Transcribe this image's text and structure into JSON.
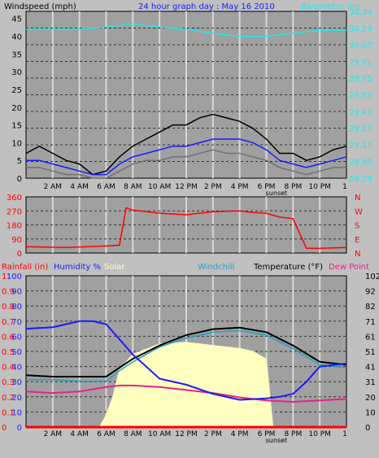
{
  "header": {
    "wind_title": "Windspeed (mph)",
    "graph_title": "24 hour graph day : May 16 2010",
    "baro_title": "Barometer (in)"
  },
  "bottom_header": {
    "rainfall": "Rainfall (in)",
    "humidity": "Humidity %",
    "solar": "Solar",
    "windchill": "Windchill",
    "temperature": "Temperature (°F)",
    "dewpoint": "Dew Point"
  },
  "colors": {
    "wind_gust": "#000000",
    "wind_avg": "#1a1aff",
    "wind_low": "#707070",
    "barometer": "#22e8e8",
    "direction": "#ff0000",
    "humidity": "#1a1aff",
    "solar": "#ffffc0",
    "temperature": "#000000",
    "windchill": "#22a0c8",
    "dewpoint": "#e8208c",
    "rainfall": "#ff0000",
    "plot_bg": "#a0a0a0"
  },
  "chart_data": [
    {
      "type": "line",
      "name": "wind-barometer",
      "x_labels": [
        "2 AM",
        "4 AM",
        "6 AM",
        "8 AM",
        "10 AM",
        "12 PM",
        "2 PM",
        "4 PM",
        "6 PM",
        "8 PM",
        "10 PM",
        "1"
      ],
      "sunset_label": "sunset",
      "sunset_hour": 19,
      "y_left_ticks": [
        0,
        5,
        10,
        15,
        20,
        25,
        30,
        35,
        40,
        45
      ],
      "y_left_range": [
        0,
        47
      ],
      "y_right_ticks": [
        "28.79",
        "28.95",
        "29.11",
        "29.27",
        "29.43",
        "29.59",
        "29.75",
        "29.91",
        "30.07",
        "30.23",
        "30.39"
      ],
      "y_right_range": [
        28.79,
        30.39
      ],
      "series": [
        {
          "key": "gust",
          "points": [
            [
              0,
              7
            ],
            [
              1,
              9
            ],
            [
              2,
              7
            ],
            [
              3,
              5
            ],
            [
              4,
              4
            ],
            [
              5,
              1
            ],
            [
              6,
              2
            ],
            [
              7,
              6
            ],
            [
              8,
              9
            ],
            [
              9,
              11
            ],
            [
              10,
              13
            ],
            [
              11,
              15
            ],
            [
              12,
              15
            ],
            [
              13,
              17
            ],
            [
              14,
              18
            ],
            [
              15,
              17
            ],
            [
              16,
              16
            ],
            [
              17,
              14
            ],
            [
              18,
              11
            ],
            [
              19,
              7
            ],
            [
              20,
              7
            ],
            [
              21,
              5
            ],
            [
              22,
              6
            ],
            [
              23,
              8
            ],
            [
              24,
              9
            ]
          ]
        },
        {
          "key": "avg",
          "points": [
            [
              0,
              5
            ],
            [
              1,
              5
            ],
            [
              2,
              4
            ],
            [
              3,
              3
            ],
            [
              4,
              2
            ],
            [
              5,
              1
            ],
            [
              6,
              1
            ],
            [
              7,
              4
            ],
            [
              8,
              6
            ],
            [
              9,
              7
            ],
            [
              10,
              8
            ],
            [
              11,
              9
            ],
            [
              12,
              9
            ],
            [
              13,
              10
            ],
            [
              14,
              11
            ],
            [
              15,
              11
            ],
            [
              16,
              11
            ],
            [
              17,
              10
            ],
            [
              18,
              8
            ],
            [
              19,
              5
            ],
            [
              20,
              4
            ],
            [
              21,
              3
            ],
            [
              22,
              4
            ],
            [
              23,
              5
            ],
            [
              24,
              6
            ]
          ]
        },
        {
          "key": "low",
          "points": [
            [
              0,
              3
            ],
            [
              1,
              3
            ],
            [
              2,
              2
            ],
            [
              3,
              1
            ],
            [
              4,
              1
            ],
            [
              5,
              0
            ],
            [
              6,
              0
            ],
            [
              7,
              2
            ],
            [
              8,
              4
            ],
            [
              9,
              5
            ],
            [
              10,
              5
            ],
            [
              11,
              6
            ],
            [
              12,
              6
            ],
            [
              13,
              7
            ],
            [
              14,
              8
            ],
            [
              15,
              7
            ],
            [
              16,
              7
            ],
            [
              17,
              6
            ],
            [
              18,
              5
            ],
            [
              19,
              3
            ],
            [
              20,
              2
            ],
            [
              21,
              1
            ],
            [
              22,
              2
            ],
            [
              23,
              3
            ],
            [
              24,
              3
            ]
          ]
        },
        {
          "key": "barometer",
          "points": [
            [
              0,
              30.22
            ],
            [
              2,
              30.22
            ],
            [
              4,
              30.22
            ],
            [
              6,
              30.24
            ],
            [
              8,
              30.27
            ],
            [
              10,
              30.24
            ],
            [
              12,
              30.22
            ],
            [
              14,
              30.18
            ],
            [
              16,
              30.15
            ],
            [
              18,
              30.15
            ],
            [
              20,
              30.18
            ],
            [
              22,
              30.21
            ],
            [
              24,
              30.21
            ]
          ]
        }
      ]
    },
    {
      "type": "scatter",
      "name": "wind-direction",
      "y_ticks": [
        0,
        90,
        180,
        270,
        360
      ],
      "y_right_labels": [
        "N",
        "W",
        "S",
        "E",
        "N"
      ],
      "y_range": [
        0,
        360
      ],
      "series": [
        {
          "key": "direction",
          "points": [
            [
              0,
              40
            ],
            [
              3,
              35
            ],
            [
              6,
              45
            ],
            [
              7,
              50
            ],
            [
              7.5,
              290
            ],
            [
              8,
              275
            ],
            [
              10,
              255
            ],
            [
              12,
              245
            ],
            [
              14,
              265
            ],
            [
              16,
              270
            ],
            [
              17,
              260
            ],
            [
              18,
              255
            ],
            [
              19,
              230
            ],
            [
              20,
              220
            ],
            [
              21,
              30
            ],
            [
              22,
              30
            ],
            [
              24,
              35
            ]
          ]
        }
      ]
    },
    {
      "type": "line",
      "name": "temperature-humidity",
      "y_left_ticks": [
        0,
        10,
        20,
        30,
        40,
        50,
        60,
        70,
        80,
        90,
        100
      ],
      "y_left_range": [
        0,
        100
      ],
      "y_rain_ticks": [
        "0",
        "0.1",
        "0.2",
        "0.3",
        "0.4",
        "0.5",
        "0.6",
        "0.7",
        "0.8",
        "0.9",
        "1"
      ],
      "y_right_ticks": [
        0,
        10,
        20,
        31,
        41,
        51,
        61,
        71,
        82,
        92,
        102
      ],
      "y_right_range": [
        0,
        102
      ],
      "series": [
        {
          "key": "humidity",
          "points": [
            [
              0,
              65
            ],
            [
              2,
              66
            ],
            [
              4,
              70
            ],
            [
              5,
              70
            ],
            [
              6,
              68
            ],
            [
              7,
              58
            ],
            [
              8,
              48
            ],
            [
              9,
              40
            ],
            [
              10,
              32
            ],
            [
              12,
              28
            ],
            [
              14,
              22
            ],
            [
              16,
              18
            ],
            [
              18,
              19
            ],
            [
              19,
              20
            ],
            [
              20,
              22
            ],
            [
              21,
              30
            ],
            [
              22,
              40
            ],
            [
              24,
              42
            ]
          ]
        },
        {
          "key": "solar",
          "points": [
            [
              5.5,
              0
            ],
            [
              6,
              8
            ],
            [
              6.5,
              20
            ],
            [
              7,
              38
            ],
            [
              8,
              48
            ],
            [
              10,
              55
            ],
            [
              12,
              56
            ],
            [
              14,
              54
            ],
            [
              16,
              52
            ],
            [
              17,
              50
            ],
            [
              18,
              45
            ],
            [
              18.5,
              0
            ]
          ]
        },
        {
          "key": "temperature",
          "points": [
            [
              0,
              35
            ],
            [
              2,
              34
            ],
            [
              4,
              34
            ],
            [
              6,
              34
            ],
            [
              7,
              40
            ],
            [
              8,
              46
            ],
            [
              10,
              55
            ],
            [
              12,
              62
            ],
            [
              14,
              66
            ],
            [
              16,
              67
            ],
            [
              18,
              64
            ],
            [
              20,
              55
            ],
            [
              22,
              44
            ],
            [
              24,
              42
            ]
          ]
        },
        {
          "key": "windchill",
          "points": [
            [
              0,
              32
            ],
            [
              2,
              32
            ],
            [
              4,
              31
            ],
            [
              6,
              31
            ],
            [
              7,
              38
            ],
            [
              8,
              44
            ],
            [
              10,
              54
            ],
            [
              12,
              60
            ],
            [
              14,
              64
            ],
            [
              16,
              65
            ],
            [
              18,
              62
            ],
            [
              20,
              53
            ],
            [
              22,
              42
            ],
            [
              24,
              40
            ]
          ]
        },
        {
          "key": "dewpoint",
          "points": [
            [
              0,
              24
            ],
            [
              2,
              23
            ],
            [
              4,
              24
            ],
            [
              6,
              27
            ],
            [
              7,
              28
            ],
            [
              8,
              28
            ],
            [
              10,
              27
            ],
            [
              12,
              25
            ],
            [
              14,
              23
            ],
            [
              16,
              20
            ],
            [
              18,
              18
            ],
            [
              20,
              17
            ],
            [
              22,
              18
            ],
            [
              24,
              19
            ]
          ]
        },
        {
          "key": "rainfall",
          "points": [
            [
              0,
              0
            ],
            [
              24,
              0
            ]
          ]
        }
      ]
    }
  ]
}
